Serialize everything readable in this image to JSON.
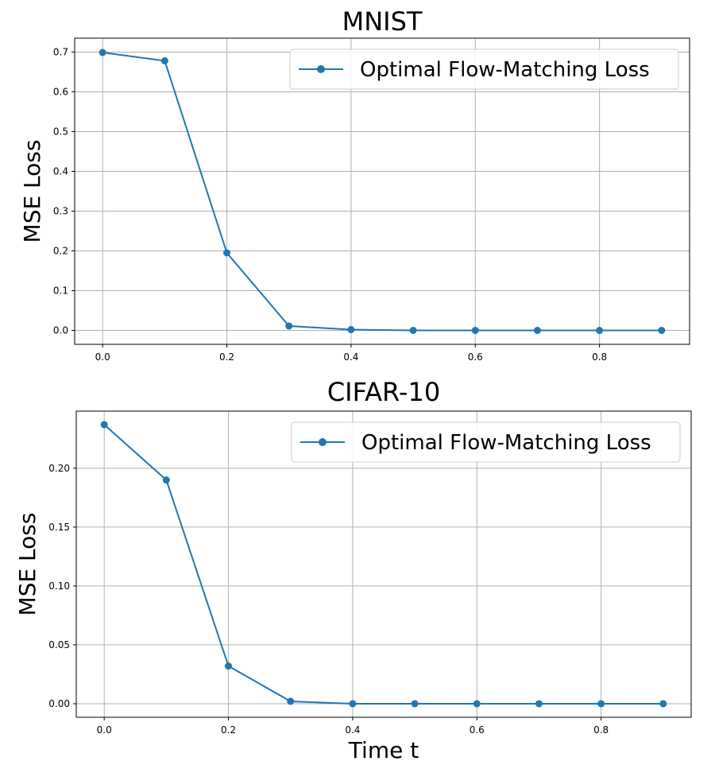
{
  "chart_data": [
    {
      "type": "line",
      "title": "MNIST",
      "xlabel": "",
      "ylabel": "MSE Loss",
      "x": [
        0.0,
        0.1,
        0.2,
        0.3,
        0.4,
        0.5,
        0.6,
        0.7,
        0.8,
        0.9
      ],
      "xlim": [
        -0.045,
        0.945
      ],
      "ylim": [
        -0.035,
        0.735
      ],
      "xticks": [
        "0.0",
        "0.2",
        "0.4",
        "0.6",
        "0.8"
      ],
      "yticks": [
        "0.0",
        "0.1",
        "0.2",
        "0.3",
        "0.4",
        "0.5",
        "0.6",
        "0.7"
      ],
      "grid": true,
      "legend": "upper right",
      "series": [
        {
          "name": "Optimal Flow-Matching Loss",
          "color": "#1f77b4",
          "marker": "circle",
          "values": [
            0.699,
            0.678,
            0.195,
            0.011,
            0.002,
            0.0,
            0.0,
            0.0,
            0.0,
            0.0
          ]
        }
      ]
    },
    {
      "type": "line",
      "title": "CIFAR-10",
      "xlabel": "Time t",
      "ylabel": "MSE Loss",
      "x": [
        0.0,
        0.1,
        0.2,
        0.3,
        0.4,
        0.5,
        0.6,
        0.7,
        0.8,
        0.9
      ],
      "xlim": [
        -0.045,
        0.945
      ],
      "ylim": [
        -0.0115,
        0.2485
      ],
      "xticks": [
        "0.0",
        "0.2",
        "0.4",
        "0.6",
        "0.8"
      ],
      "yticks": [
        "0.00",
        "0.05",
        "0.10",
        "0.15",
        "0.20"
      ],
      "grid": true,
      "legend": "upper right",
      "series": [
        {
          "name": "Optimal Flow-Matching Loss",
          "color": "#1f77b4",
          "marker": "circle",
          "values": [
            0.237,
            0.19,
            0.032,
            0.002,
            0.0,
            0.0,
            0.0,
            0.0,
            0.0,
            0.0
          ]
        }
      ]
    }
  ]
}
